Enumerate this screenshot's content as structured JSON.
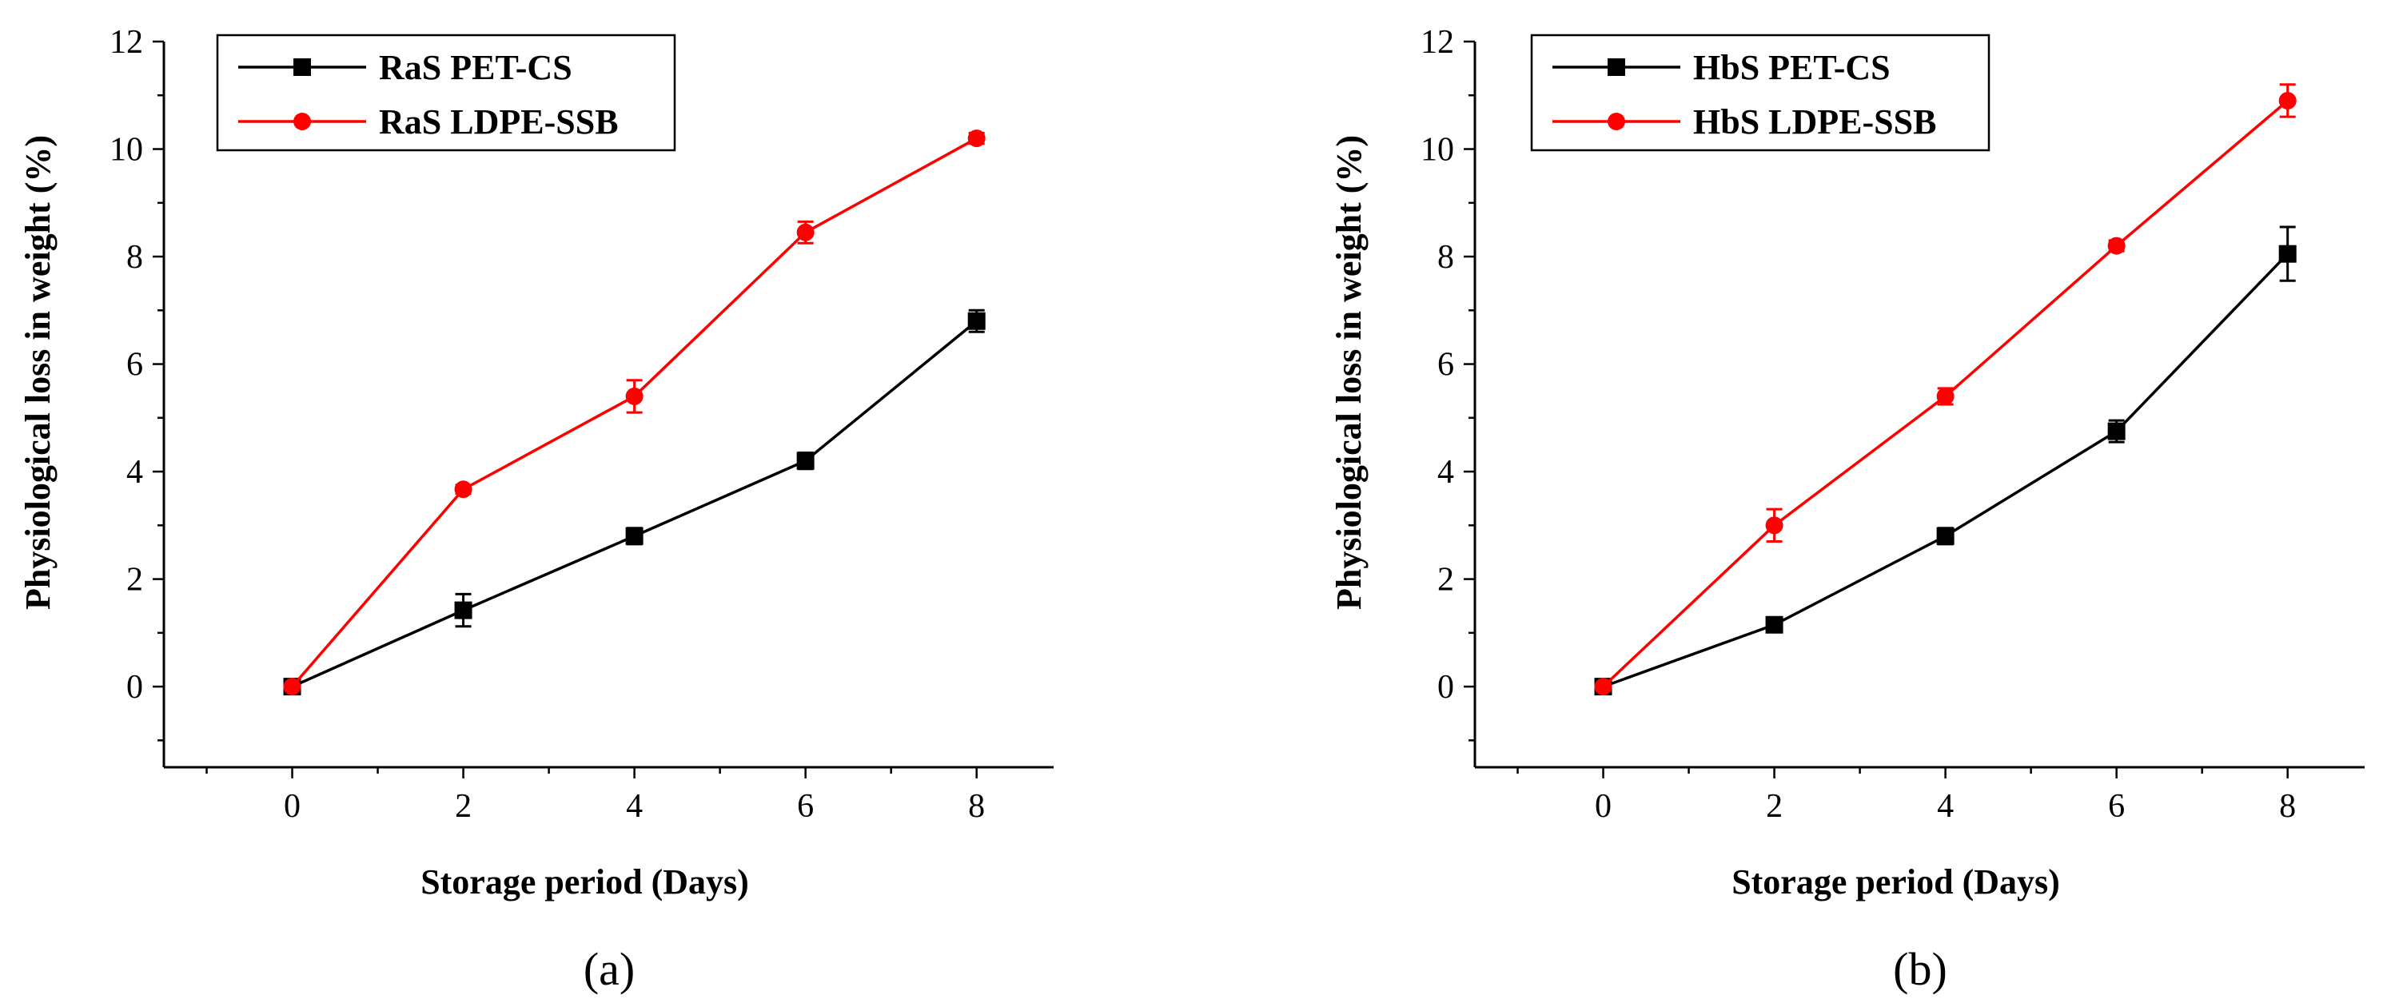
{
  "chart_data": [
    {
      "type": "line",
      "panel_label": "(a)",
      "xlabel": "Storage period (Days)",
      "ylabel": "Physiological loss in weight (%)",
      "xlim": [
        -1.5,
        8.9
      ],
      "ylim": [
        -1.5,
        12
      ],
      "xticks": [
        0,
        2,
        4,
        6,
        8
      ],
      "yticks": [
        0,
        2,
        4,
        6,
        8,
        10,
        12
      ],
      "legend_position": "top-left",
      "series": [
        {
          "name": "RaS PET-CS",
          "color": "#000000",
          "marker": "square",
          "x": [
            0,
            2,
            4,
            6,
            8
          ],
          "y": [
            0,
            1.42,
            2.8,
            4.2,
            6.8
          ],
          "err": [
            0.05,
            0.3,
            0.15,
            0.15,
            0.2
          ]
        },
        {
          "name": "RaS LDPE-SSB",
          "color": "#ff0000",
          "marker": "circle",
          "x": [
            0,
            2,
            4,
            6,
            8
          ],
          "y": [
            0,
            3.67,
            5.4,
            8.45,
            10.2
          ],
          "err": [
            0.05,
            0.08,
            0.3,
            0.2,
            0.1
          ]
        }
      ]
    },
    {
      "type": "line",
      "panel_label": "(b)",
      "xlabel": "Storage period (Days)",
      "ylabel": "Physiological loss in weight (%)",
      "xlim": [
        -1.5,
        8.9
      ],
      "ylim": [
        -1.5,
        12
      ],
      "xticks": [
        0,
        2,
        4,
        6,
        8
      ],
      "yticks": [
        0,
        2,
        4,
        6,
        8,
        10,
        12
      ],
      "legend_position": "top-left",
      "series": [
        {
          "name": "HbS PET-CS",
          "color": "#000000",
          "marker": "square",
          "x": [
            0,
            2,
            4,
            6,
            8
          ],
          "y": [
            0,
            1.15,
            2.8,
            4.75,
            8.05
          ],
          "err": [
            0.05,
            0.1,
            0.15,
            0.2,
            0.5
          ]
        },
        {
          "name": "HbS LDPE-SSB",
          "color": "#ff0000",
          "marker": "circle",
          "x": [
            0,
            2,
            4,
            6,
            8
          ],
          "y": [
            0,
            3.0,
            5.4,
            8.2,
            10.9
          ],
          "err": [
            0.05,
            0.3,
            0.15,
            0.1,
            0.3
          ]
        }
      ]
    }
  ]
}
